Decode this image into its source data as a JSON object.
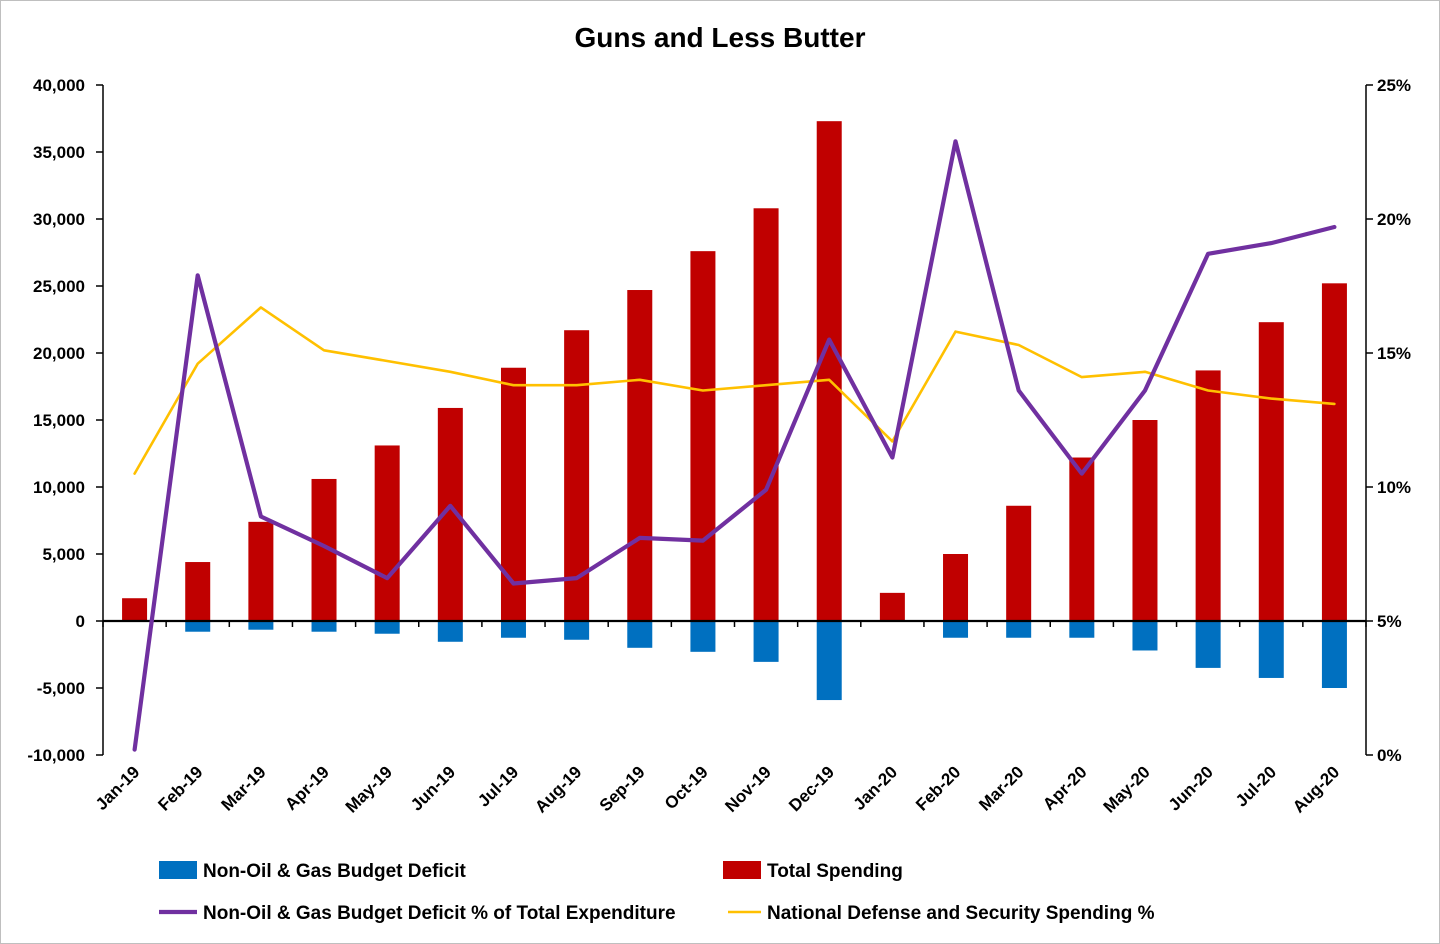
{
  "chart_data": {
    "type": "bar",
    "title": "Guns and Less Butter",
    "categories": [
      "Jan-19",
      "Feb-19",
      "Mar-19",
      "Apr-19",
      "May-19",
      "Jun-19",
      "Jul-19",
      "Aug-19",
      "Sep-19",
      "Oct-19",
      "Nov-19",
      "Dec-19",
      "Jan-20",
      "Feb-20",
      "Mar-20",
      "Apr-20",
      "May-20",
      "Jun-20",
      "Jul-20",
      "Aug-20"
    ],
    "y_left": {
      "lim": [
        -10000,
        40000
      ],
      "ticks": [
        -10000,
        -5000,
        0,
        5000,
        10000,
        15000,
        20000,
        25000,
        30000,
        35000,
        40000
      ],
      "tick_labels": [
        "-10,000",
        "-5,000",
        "0",
        "5,000",
        "10,000",
        "15,000",
        "20,000",
        "25,000",
        "30,000",
        "35,000",
        "40,000"
      ]
    },
    "y_right": {
      "lim": [
        0,
        25
      ],
      "ticks": [
        0,
        5,
        10,
        15,
        20,
        25
      ],
      "tick_labels": [
        "0%",
        "5%",
        "10%",
        "15%",
        "20%",
        "25%"
      ]
    },
    "series": [
      {
        "name": "Non-Oil & Gas Budget Deficit",
        "kind": "bar",
        "axis": "left",
        "color": "#0070c0",
        "values": [
          0,
          -800,
          -650,
          -800,
          -950,
          -1550,
          -1250,
          -1400,
          -2000,
          -2300,
          -3050,
          -5900,
          0,
          -1250,
          -1250,
          -1250,
          -2200,
          -3500,
          -4250,
          -5000
        ]
      },
      {
        "name": "Total Spending",
        "kind": "bar",
        "axis": "left",
        "color": "#c00000",
        "values": [
          1700,
          4400,
          7400,
          10600,
          13100,
          15900,
          18900,
          21700,
          24700,
          27600,
          30800,
          37300,
          2100,
          5000,
          8600,
          12200,
          15000,
          18700,
          22300,
          25200
        ]
      },
      {
        "name": "Non-Oil & Gas Budget Deficit % of Total Expenditure",
        "kind": "line",
        "axis": "right",
        "color": "#7030a0",
        "values": [
          0.2,
          17.9,
          8.9,
          7.8,
          6.6,
          9.3,
          6.4,
          6.6,
          8.1,
          8.0,
          9.9,
          15.5,
          11.1,
          22.9,
          13.6,
          10.5,
          13.6,
          18.7,
          19.1,
          19.7
        ]
      },
      {
        "name": "National Defense and Security Spending %",
        "kind": "line",
        "axis": "right",
        "color": "#ffc000",
        "values": [
          10.5,
          14.6,
          16.7,
          15.1,
          14.7,
          14.3,
          13.8,
          13.8,
          14.0,
          13.6,
          13.8,
          14.0,
          11.7,
          15.8,
          15.3,
          14.1,
          14.3,
          13.6,
          13.3,
          13.1
        ]
      }
    ],
    "grid": false,
    "legend_position": "bottom"
  }
}
